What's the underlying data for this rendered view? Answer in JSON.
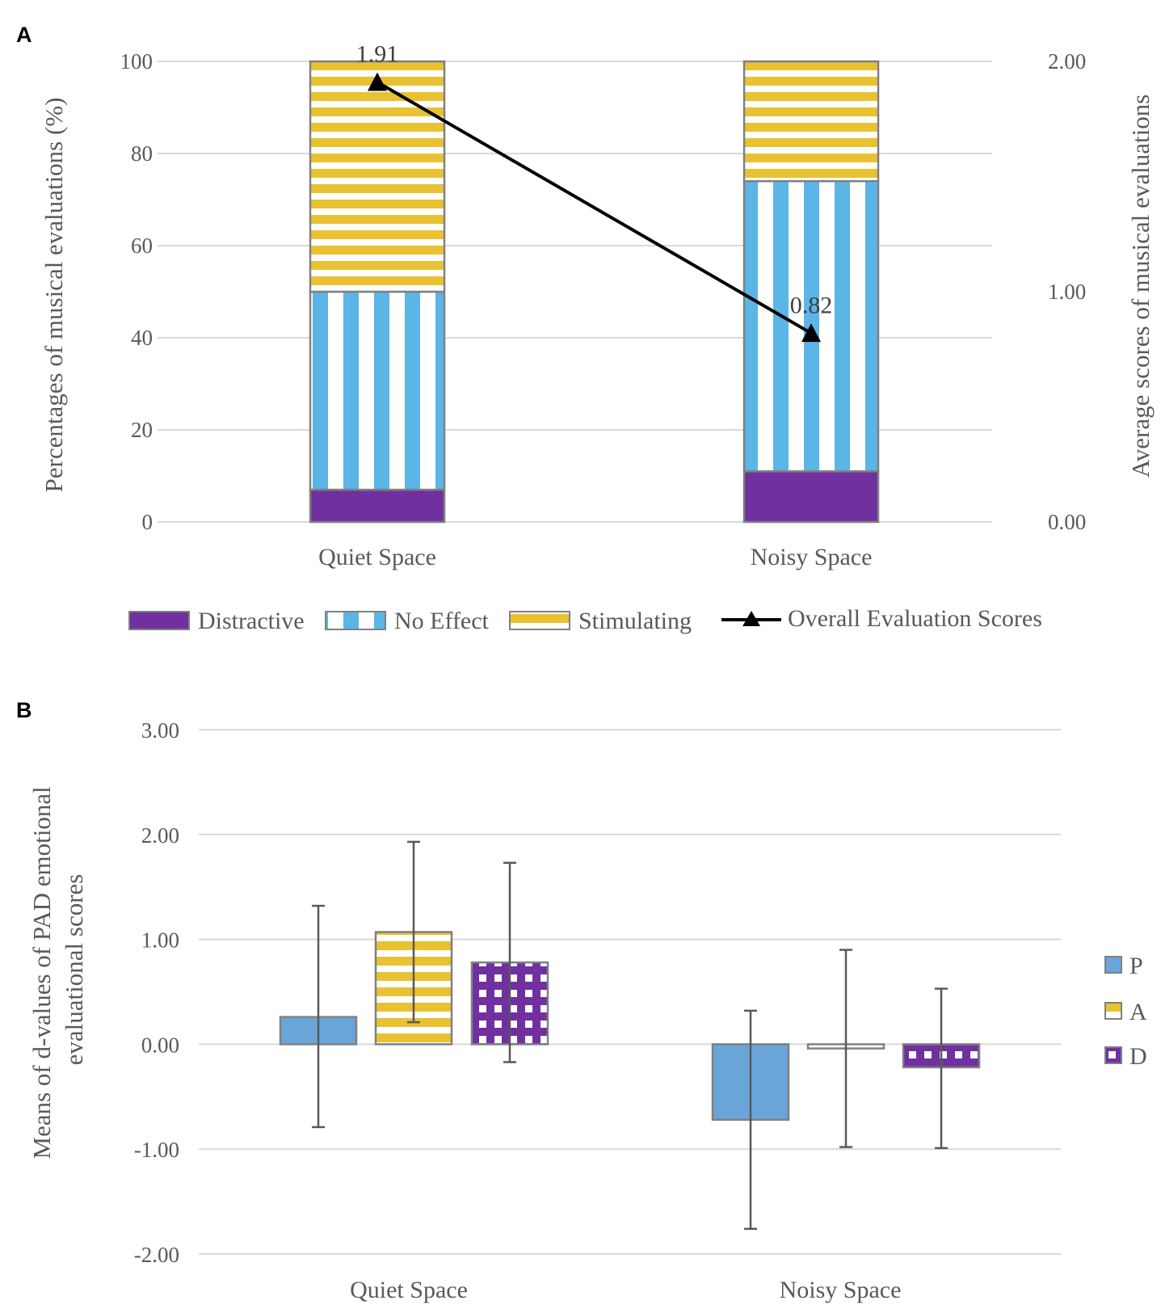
{
  "figure": {
    "panel_a_label": "A",
    "panel_b_label": "B"
  },
  "colors": {
    "distractive": "#7030a0",
    "no_effect": "#5bb5e6",
    "stimulating": "#e8c232",
    "p": "#6aa5d9",
    "a": "#e8c232",
    "d": "#7030a0",
    "line": "#000000",
    "bar_outline": "#808080",
    "errorbar": "#595959"
  },
  "chart_data": [
    {
      "type": "bar",
      "subtype": "stacked-with-line",
      "title": "",
      "categories": [
        "Quiet Space",
        "Noisy Space"
      ],
      "series": [
        {
          "name": "Distractive",
          "values": [
            7,
            11
          ],
          "pattern": "solid"
        },
        {
          "name": "No Effect",
          "values": [
            43,
            63
          ],
          "pattern": "vertical-stripes"
        },
        {
          "name": "Stimulating",
          "values": [
            50,
            26
          ],
          "pattern": "horizontal-stripes"
        }
      ],
      "line_series": {
        "name": "Overall Evaluation Scores",
        "values": [
          1.91,
          0.82
        ],
        "labels": [
          "1.91",
          "0.82"
        ],
        "axis": "right",
        "marker": "triangle"
      },
      "ylabel": "Percentages of musical evaluations (%)",
      "y2label": "Average scores of musical evaluations",
      "ylim": [
        0,
        100
      ],
      "y2lim": [
        0,
        2
      ],
      "yticks": [
        "0",
        "20",
        "40",
        "60",
        "80",
        "100"
      ],
      "y2ticks": [
        "0.00",
        "1.00",
        "2.00"
      ],
      "grid": true,
      "legend_position": "bottom"
    },
    {
      "type": "bar",
      "subtype": "grouped-with-errorbars",
      "title": "",
      "categories": [
        "Quiet Space",
        "Noisy Space"
      ],
      "series": [
        {
          "name": "P",
          "values": [
            0.26,
            -0.72
          ],
          "err_low": [
            -0.79,
            -1.76
          ],
          "err_high": [
            1.32,
            0.32
          ],
          "pattern": "solid"
        },
        {
          "name": "A",
          "values": [
            1.07,
            -0.04
          ],
          "err_low": [
            0.21,
            -0.98
          ],
          "err_high": [
            1.93,
            0.9
          ],
          "pattern": "horizontal-stripes"
        },
        {
          "name": "D",
          "values": [
            0.78,
            -0.22
          ],
          "err_low": [
            -0.17,
            -0.99
          ],
          "err_high": [
            1.73,
            0.53
          ],
          "pattern": "checker"
        }
      ],
      "ylabel_line1": "Means of d-values of PAD emotional",
      "ylabel_line2": "evaluational scores",
      "ylim": [
        -2,
        3
      ],
      "yticks": [
        "-2.00",
        "-1.00",
        "0.00",
        "1.00",
        "2.00",
        "3.00"
      ],
      "grid": true,
      "legend_position": "right"
    }
  ]
}
